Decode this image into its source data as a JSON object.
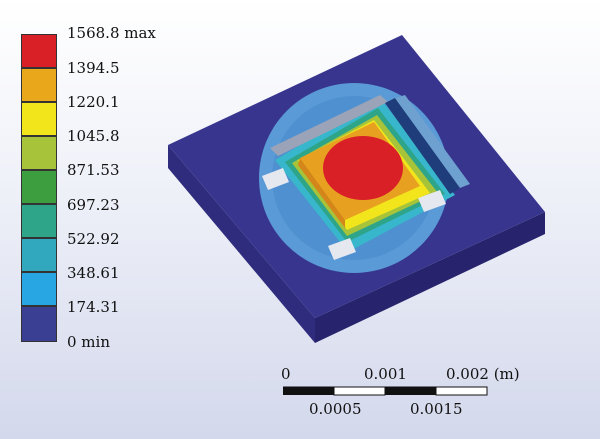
{
  "legend": {
    "max_value": "1568.8",
    "max_tag": "max",
    "min_value": "0",
    "min_tag": "min",
    "levels": [
      {
        "label": "1568.8 max",
        "color": "#d92027"
      },
      {
        "label": "1394.5",
        "color": "#e9a81b"
      },
      {
        "label": "1220.1",
        "color": "#f2e51b"
      },
      {
        "label": "1045.8",
        "color": "#a6c33a"
      },
      {
        "label": "871.53",
        "color": "#3c9e3f"
      },
      {
        "label": "697.23",
        "color": "#2ea489"
      },
      {
        "label": "522.92",
        "color": "#31a8bd"
      },
      {
        "label": "348.61",
        "color": "#27a6e3"
      },
      {
        "label": "174.31",
        "color": "#3753a3"
      },
      {
        "label": "0 min",
        "color": "#3a3f94"
      }
    ]
  },
  "scale": {
    "unit": "(m)",
    "top_labels": [
      "0",
      "0.001",
      "0.002 (m)"
    ],
    "bottom_labels": [
      "0.0005",
      "0.0015"
    ]
  },
  "model": {
    "substrate_color": "#38358f",
    "halo_color": "#5a9ad6",
    "hotspot_color": "#d92027",
    "plate_color": "#e8a020"
  }
}
